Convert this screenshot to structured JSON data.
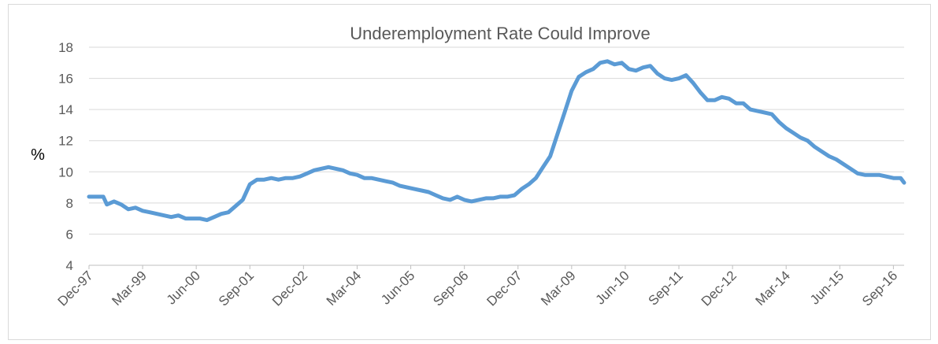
{
  "chart_data": {
    "type": "line",
    "title": "Underemployment Rate Could Improve",
    "ylabel": "%",
    "xlabel": "",
    "ylim": [
      4,
      18
    ],
    "yticks": [
      4,
      6,
      8,
      10,
      12,
      14,
      16,
      18
    ],
    "grid": true,
    "legend": "none",
    "x_tick_labels": [
      "Dec-97",
      "Mar-99",
      "Jun-00",
      "Sep-01",
      "Dec-02",
      "Mar-04",
      "Jun-05",
      "Sep-06",
      "Dec-07",
      "Mar-09",
      "Jun-10",
      "Sep-11",
      "Dec-12",
      "Mar-14",
      "Jun-15",
      "Sep-16"
    ],
    "colors": {
      "line": "#5b9bd5"
    },
    "series": [
      {
        "x": [
          "1997-12",
          "1998-02",
          "1998-04",
          "1998-05",
          "1998-07",
          "1998-09",
          "1998-11",
          "1999-01",
          "1999-03",
          "1999-05",
          "1999-07",
          "1999-09",
          "1999-11",
          "2000-01",
          "2000-03",
          "2000-05",
          "2000-07",
          "2000-09",
          "2000-11",
          "2001-01",
          "2001-03",
          "2001-05",
          "2001-07",
          "2001-09",
          "2001-11",
          "2002-01",
          "2002-03",
          "2002-05",
          "2002-07",
          "2002-09",
          "2002-11",
          "2003-01",
          "2003-03",
          "2003-05",
          "2003-07",
          "2003-09",
          "2003-11",
          "2004-01",
          "2004-03",
          "2004-05",
          "2004-07",
          "2004-09",
          "2004-11",
          "2005-01",
          "2005-03",
          "2005-05",
          "2005-07",
          "2005-09",
          "2005-11",
          "2006-01",
          "2006-03",
          "2006-05",
          "2006-07",
          "2006-09",
          "2006-11",
          "2007-01",
          "2007-03",
          "2007-05",
          "2007-07",
          "2007-09",
          "2007-11",
          "2008-01",
          "2008-03",
          "2008-05",
          "2008-07",
          "2008-09",
          "2008-11",
          "2009-01",
          "2009-03",
          "2009-05",
          "2009-07",
          "2009-09",
          "2009-11",
          "2010-01",
          "2010-03",
          "2010-05",
          "2010-07",
          "2010-09",
          "2010-11",
          "2011-01",
          "2011-03",
          "2011-05",
          "2011-07",
          "2011-09",
          "2011-11",
          "2012-01",
          "2012-03",
          "2012-05",
          "2012-07",
          "2012-09",
          "2012-11",
          "2013-01",
          "2013-03",
          "2013-05",
          "2013-07",
          "2013-09",
          "2013-11",
          "2014-01",
          "2014-03",
          "2014-05",
          "2014-07",
          "2014-09",
          "2014-11",
          "2015-01",
          "2015-03",
          "2015-05",
          "2015-07",
          "2015-09",
          "2015-11",
          "2016-01",
          "2016-03",
          "2016-05",
          "2016-07",
          "2016-09",
          "2016-11",
          "2016-12"
        ],
        "values": [
          8.4,
          8.4,
          8.4,
          7.9,
          8.1,
          7.9,
          7.6,
          7.7,
          7.5,
          7.4,
          7.3,
          7.2,
          7.1,
          7.2,
          7.0,
          7.0,
          7.0,
          6.9,
          7.1,
          7.3,
          7.4,
          7.8,
          8.2,
          9.2,
          9.5,
          9.5,
          9.6,
          9.5,
          9.6,
          9.6,
          9.7,
          9.9,
          10.1,
          10.2,
          10.3,
          10.2,
          10.1,
          9.9,
          9.8,
          9.6,
          9.6,
          9.5,
          9.4,
          9.3,
          9.1,
          9.0,
          8.9,
          8.8,
          8.7,
          8.5,
          8.3,
          8.2,
          8.4,
          8.2,
          8.1,
          8.2,
          8.3,
          8.3,
          8.4,
          8.4,
          8.5,
          8.9,
          9.2,
          9.6,
          10.3,
          11.0,
          12.4,
          13.8,
          15.2,
          16.1,
          16.4,
          16.6,
          17.0,
          17.1,
          16.9,
          17.0,
          16.6,
          16.5,
          16.7,
          16.8,
          16.3,
          16.0,
          15.9,
          16.0,
          16.2,
          15.7,
          15.1,
          14.6,
          14.6,
          14.8,
          14.7,
          14.4,
          14.4,
          14.0,
          13.9,
          13.8,
          13.7,
          13.2,
          12.8,
          12.5,
          12.2,
          12.0,
          11.6,
          11.3,
          11.0,
          10.8,
          10.5,
          10.2,
          9.9,
          9.8,
          9.8,
          9.8,
          9.7,
          9.6,
          9.6,
          9.3
        ]
      }
    ]
  }
}
